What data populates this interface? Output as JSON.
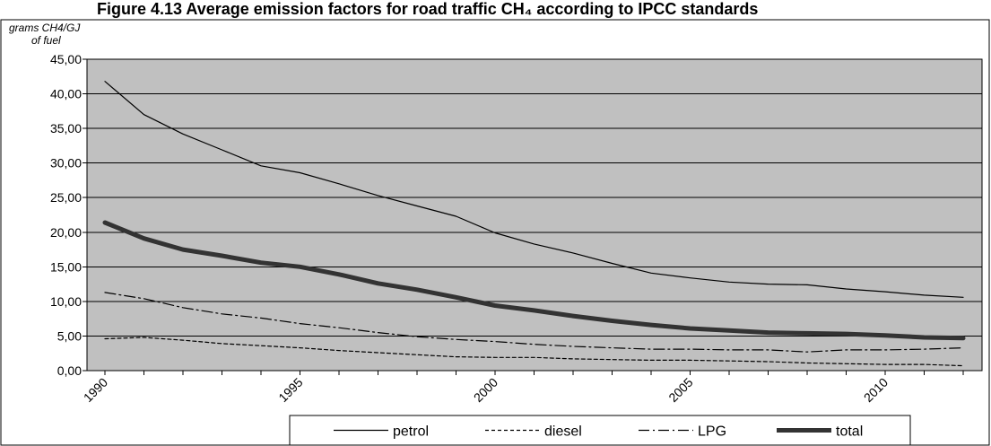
{
  "chart_data": {
    "type": "line",
    "title": "Figure 4.13  Average emission factors for road traffic CH₄ according to IPCC standards",
    "ylabel_line1": "grams CH4/GJ",
    "ylabel_line2": "of fuel",
    "xlabel": "",
    "ylim": [
      0,
      45
    ],
    "xlim": [
      1990,
      2012
    ],
    "y_ticks": [
      "0,00",
      "5,00",
      "10,00",
      "15,00",
      "20,00",
      "25,00",
      "30,00",
      "35,00",
      "40,00",
      "45,00"
    ],
    "x_ticks": [
      "1990",
      "1995",
      "2000",
      "2005",
      "2010"
    ],
    "grid": true,
    "legend_position": "bottom",
    "x": [
      1990,
      1991,
      1992,
      1993,
      1994,
      1995,
      1996,
      1997,
      1998,
      1999,
      2000,
      2001,
      2002,
      2003,
      2004,
      2005,
      2006,
      2007,
      2008,
      2009,
      2010,
      2011,
      2012
    ],
    "series": [
      {
        "name": "petrol",
        "style": "solid-thin",
        "color": "#000000",
        "values": [
          41.8,
          37.0,
          34.2,
          31.9,
          29.6,
          28.6,
          27.0,
          25.3,
          23.8,
          22.3,
          19.9,
          18.3,
          17.0,
          15.5,
          14.1,
          13.4,
          12.8,
          12.5,
          12.4,
          11.8,
          11.4,
          10.9,
          10.6
        ]
      },
      {
        "name": "diesel",
        "style": "dashed",
        "color": "#000000",
        "values": [
          4.6,
          4.8,
          4.4,
          3.9,
          3.6,
          3.3,
          2.9,
          2.6,
          2.3,
          2.0,
          1.9,
          1.9,
          1.7,
          1.6,
          1.5,
          1.5,
          1.4,
          1.3,
          1.1,
          1.0,
          0.9,
          0.9,
          0.7
        ]
      },
      {
        "name": "LPG",
        "style": "dashdot",
        "color": "#000000",
        "values": [
          11.3,
          10.4,
          9.1,
          8.2,
          7.6,
          6.8,
          6.2,
          5.5,
          4.9,
          4.5,
          4.2,
          3.8,
          3.5,
          3.3,
          3.1,
          3.1,
          3.0,
          3.0,
          2.7,
          3.0,
          3.0,
          3.1,
          3.3
        ]
      },
      {
        "name": "total",
        "style": "solid-thick",
        "color": "#333333",
        "values": [
          21.4,
          19.1,
          17.5,
          16.6,
          15.6,
          15.0,
          13.9,
          12.6,
          11.7,
          10.6,
          9.4,
          8.7,
          7.9,
          7.2,
          6.6,
          6.1,
          5.8,
          5.5,
          5.4,
          5.3,
          5.1,
          4.8,
          4.7
        ]
      }
    ],
    "colors": {
      "plot_background": "#c0c0c0",
      "gridline": "#000000",
      "axis": "#000000"
    }
  }
}
